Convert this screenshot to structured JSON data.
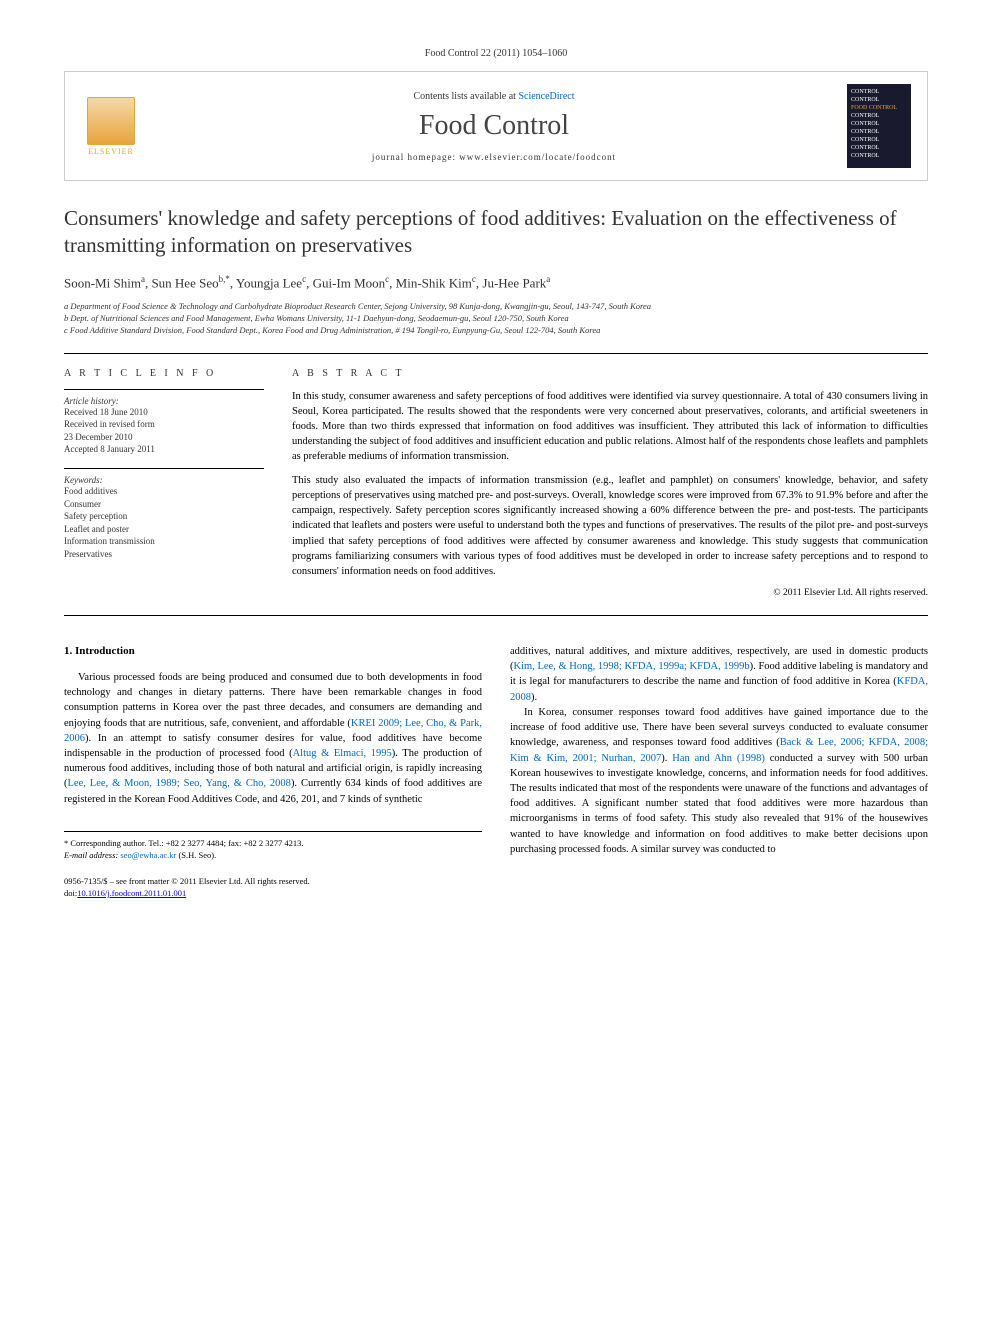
{
  "citation": "Food Control 22 (2011) 1054–1060",
  "header": {
    "contents_prefix": "Contents lists available at ",
    "contents_link": "ScienceDirect",
    "journal": "Food Control",
    "homepage_prefix": "journal homepage: ",
    "homepage_url": "www.elsevier.com/locate/foodcont",
    "publisher": "ELSEVIER",
    "cover_lines": [
      "CONTROL",
      "CONTROL",
      "FOOD CONTROL",
      "CONTROL",
      "CONTROL",
      "CONTROL",
      "CONTROL",
      "CONTROL",
      "CONTROL"
    ]
  },
  "title": "Consumers' knowledge and safety perceptions of food additives: Evaluation on the effectiveness of transmitting information on preservatives",
  "authors_html": "Soon-Mi Shim<sup>a</sup>, Sun Hee Seo<sup>b,*</sup>, Youngja Lee<sup>c</sup>, Gui-Im Moon<sup>c</sup>, Min-Shik Kim<sup>c</sup>, Ju-Hee Park<sup>a</sup>",
  "affiliations": [
    "a Department of Food Science & Technology and Carbohydrate Bioproduct Research Center, Sejong University, 98 Kunja-dong, Kwangjin-gu, Seoul, 143-747, South Korea",
    "b Dept. of Nutritional Sciences and Food Management, Ewha Womans University, 11-1 Daehyun-dong, Seodaemun-gu, Seoul 120-750, South Korea",
    "c Food Additive Standard Division, Food Standard Dept., Korea Food and Drug Administration, # 194 Tongil-ro, Eunpyung-Gu, Seoul 122-704, South Korea"
  ],
  "article_info": {
    "heading": "A R T I C L E   I N F O",
    "history_label": "Article history:",
    "history": [
      "Received 18 June 2010",
      "Received in revised form",
      "23 December 2010",
      "Accepted 8 January 2011"
    ],
    "keywords_label": "Keywords:",
    "keywords": [
      "Food additives",
      "Consumer",
      "Safety perception",
      "Leaflet and poster",
      "Information transmission",
      "Preservatives"
    ]
  },
  "abstract": {
    "heading": "A B S T R A C T",
    "para1": "In this study, consumer awareness and safety perceptions of food additives were identified via survey questionnaire. A total of 430 consumers living in Seoul, Korea participated. The results showed that the respondents were very concerned about preservatives, colorants, and artificial sweeteners in foods. More than two thirds expressed that information on food additives was insufficient. They attributed this lack of information to difficulties understanding the subject of food additives and insufficient education and public relations. Almost half of the respondents chose leaflets and pamphlets as preferable mediums of information transmission.",
    "para2": "This study also evaluated the impacts of information transmission (e.g., leaflet and pamphlet) on consumers' knowledge, behavior, and safety perceptions of preservatives using matched pre- and post-surveys. Overall, knowledge scores were improved from 67.3% to 91.9% before and after the campaign, respectively. Safety perception scores significantly increased showing a 60% difference between the pre- and post-tests. The participants indicated that leaflets and posters were useful to understand both the types and functions of preservatives. The results of the pilot pre- and post-surveys implied that safety perceptions of food additives were affected by consumer awareness and knowledge. This study suggests that communication programs familiarizing consumers with various types of food additives must be developed in order to increase safety perceptions and to respond to consumers' information needs on food additives.",
    "copyright": "© 2011 Elsevier Ltd. All rights reserved."
  },
  "body": {
    "section_heading": "1. Introduction",
    "col1_p1_a": "Various processed foods are being produced and consumed due to both developments in food technology and changes in dietary patterns. There have been remarkable changes in food consumption patterns in Korea over the past three decades, and consumers are demanding and enjoying foods that are nutritious, safe, convenient, and affordable (",
    "col1_ref1": "KREI 2009; Lee, Cho, & Park, 2006",
    "col1_p1_b": "). In an attempt to satisfy consumer desires for value, food additives have become indispensable in the production of processed food (",
    "col1_ref2": "Altug & Elmaci, 1995",
    "col1_p1_c": "). The production of numerous food additives, including those of both natural and artificial origin, is rapidly increasing (",
    "col1_ref3": "Lee, Lee, & Moon, 1989; Seo, Yang, & Cho, 2008",
    "col1_p1_d": "). Currently 634 kinds of food additives are registered in the Korean Food Additives Code, and 426, 201, and 7 kinds of synthetic",
    "col2_p1_a": "additives, natural additives, and mixture additives, respectively, are used in domestic products (",
    "col2_ref1": "Kim, Lee, & Hong, 1998; KFDA, 1999a; KFDA, 1999b",
    "col2_p1_b": "). Food additive labeling is mandatory and it is legal for manufacturers to describe the name and function of food additive in Korea (",
    "col2_ref2": "KFDA, 2008",
    "col2_p1_c": ").",
    "col2_p2_a": "In Korea, consumer responses toward food additives have gained importance due to the increase of food additive use. There have been several surveys conducted to evaluate consumer knowledge, awareness, and responses toward food additives (",
    "col2_ref3": "Back & Lee, 2006; KFDA, 2008; Kim & Kim, 2001; Nurhan, 2007",
    "col2_p2_b": "). ",
    "col2_ref4": "Han and Ahn (1998)",
    "col2_p2_c": " conducted a survey with 500 urban Korean housewives to investigate knowledge, concerns, and information needs for food additives. The results indicated that most of the respondents were unaware of the functions and advantages of food additives. A significant number stated that food additives were more hazardous than microorganisms in terms of food safety. This study also revealed that 91% of the housewives wanted to have knowledge and information on food additives to make better decisions upon purchasing processed foods. A similar survey was conducted to"
  },
  "corresponding": {
    "line1": "* Corresponding author. Tel.: +82 2 3277 4484; fax: +82 2 3277 4213.",
    "email_label": "E-mail address: ",
    "email": "seo@ewha.ac.kr",
    "email_suffix": " (S.H. Seo)."
  },
  "bottom": {
    "line1": "0956-7135/$ – see front matter © 2011 Elsevier Ltd. All rights reserved.",
    "doi_prefix": "doi:",
    "doi": "10.1016/j.foodcont.2011.01.001"
  }
}
